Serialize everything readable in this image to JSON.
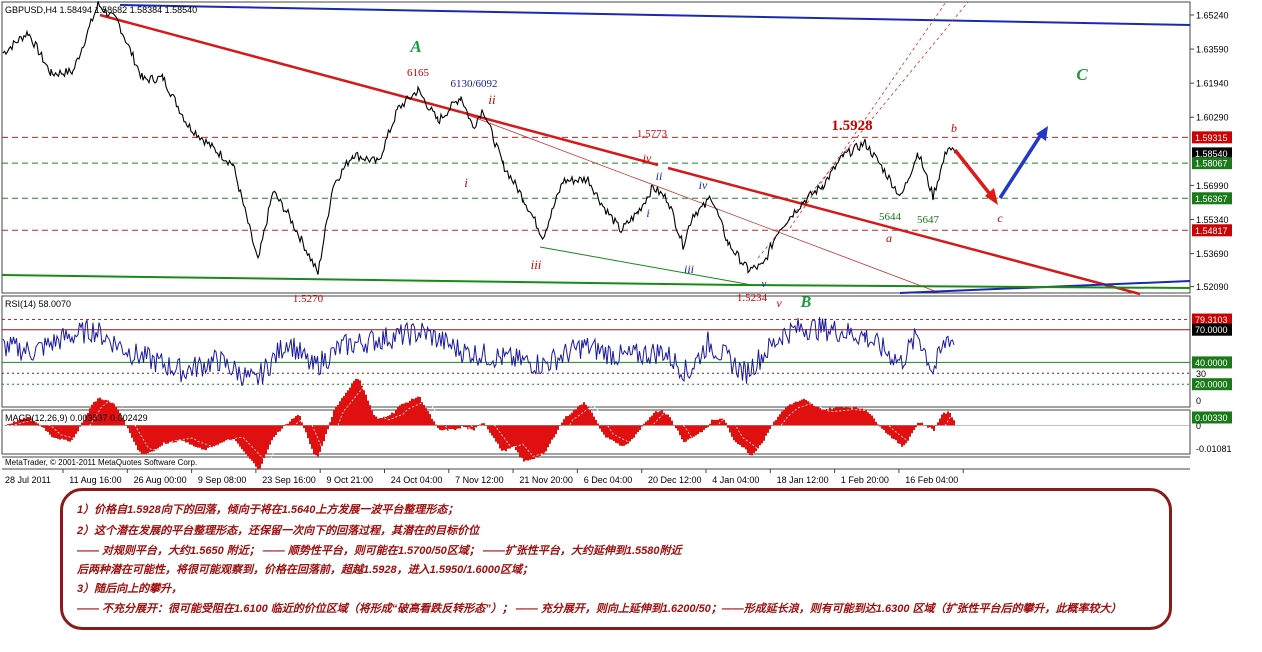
{
  "header": {
    "symbol": "GBPUSD,H4",
    "ohlc": "1.58494 1.58682 1.58384 1.58540"
  },
  "chart_data": [
    {
      "type": "line",
      "title": "GBPUSD,H4 1.58494 1.58682 1.58384 1.58540",
      "ylim": [
        1.5183,
        1.6582
      ],
      "price_ticks": [
        "1.65240",
        "1.63590",
        "1.61940",
        "1.60290",
        "1.58540",
        "1.56990",
        "1.55340",
        "1.53690",
        "1.52090"
      ],
      "time_labels": [
        "28 Jul 2011",
        "11 Aug 16:00",
        "26 Aug 00:00",
        "9 Sep 08:00",
        "23 Sep 16:00",
        "9 Oct 21:00",
        "24 Oct 04:00",
        "7 Nov 12:00",
        "21 Nov 20:00",
        "6 Dec 04:00",
        "20 Dec 12:00",
        "4 Jan 04:00",
        "18 Jan 12:00",
        "1 Feb 20:00",
        "16 Feb 04:00"
      ],
      "keypoints": [
        {
          "x": 0,
          "y": 1.634
        },
        {
          "x": 25,
          "y": 1.644
        },
        {
          "x": 48,
          "y": 1.624
        },
        {
          "x": 70,
          "y": 1.625
        },
        {
          "x": 95,
          "y": 1.6575
        },
        {
          "x": 115,
          "y": 1.649
        },
        {
          "x": 140,
          "y": 1.621
        },
        {
          "x": 160,
          "y": 1.622
        },
        {
          "x": 185,
          "y": 1.599
        },
        {
          "x": 210,
          "y": 1.588
        },
        {
          "x": 230,
          "y": 1.58
        },
        {
          "x": 255,
          "y": 1.533
        },
        {
          "x": 270,
          "y": 1.567
        },
        {
          "x": 285,
          "y": 1.556
        },
        {
          "x": 300,
          "y": 1.542
        },
        {
          "x": 315,
          "y": 1.5272
        },
        {
          "x": 330,
          "y": 1.57
        },
        {
          "x": 350,
          "y": 1.585
        },
        {
          "x": 375,
          "y": 1.581
        },
        {
          "x": 395,
          "y": 1.607
        },
        {
          "x": 415,
          "y": 1.616
        },
        {
          "x": 435,
          "y": 1.601
        },
        {
          "x": 458,
          "y": 1.613
        },
        {
          "x": 470,
          "y": 1.598
        },
        {
          "x": 480,
          "y": 1.607
        },
        {
          "x": 500,
          "y": 1.58
        },
        {
          "x": 520,
          "y": 1.564
        },
        {
          "x": 540,
          "y": 1.545
        },
        {
          "x": 560,
          "y": 1.572
        },
        {
          "x": 585,
          "y": 1.573
        },
        {
          "x": 600,
          "y": 1.56
        },
        {
          "x": 618,
          "y": 1.548
        },
        {
          "x": 635,
          "y": 1.557
        },
        {
          "x": 650,
          "y": 1.569
        },
        {
          "x": 665,
          "y": 1.563
        },
        {
          "x": 680,
          "y": 1.541
        },
        {
          "x": 690,
          "y": 1.556
        },
        {
          "x": 702,
          "y": 1.56
        },
        {
          "x": 708,
          "y": 1.565
        },
        {
          "x": 725,
          "y": 1.542
        },
        {
          "x": 745,
          "y": 1.529
        },
        {
          "x": 760,
          "y": 1.531
        },
        {
          "x": 775,
          "y": 1.548
        },
        {
          "x": 800,
          "y": 1.562
        },
        {
          "x": 820,
          "y": 1.57
        },
        {
          "x": 840,
          "y": 1.584
        },
        {
          "x": 862,
          "y": 1.5905
        },
        {
          "x": 880,
          "y": 1.578
        },
        {
          "x": 898,
          "y": 1.5642
        },
        {
          "x": 915,
          "y": 1.586
        },
        {
          "x": 930,
          "y": 1.5647
        },
        {
          "x": 945,
          "y": 1.589
        },
        {
          "x": 952,
          "y": 1.5854
        }
      ],
      "horizontal_levels": [
        {
          "value": "1.59315",
          "label_color": "#cc0000",
          "line_color": "#cc2222",
          "style": "dash"
        },
        {
          "value": "1.58540",
          "label_color": "#000000",
          "line_color": "#000000",
          "style": "none"
        },
        {
          "value": "1.58067",
          "label_color": "#1a7a1a",
          "line_color": "#1a8a1a",
          "style": "dash"
        },
        {
          "value": "1.56367",
          "label_color": "#1a7a1a",
          "line_color": "#1a8a1a",
          "style": "dash"
        },
        {
          "value": "1.54817",
          "label_color": "#cc0000",
          "line_color": "#cc2222",
          "style": "dash"
        }
      ],
      "wave_labels": [
        {
          "text": "A",
          "x": 416,
          "y": 52,
          "color": "#1a9a3a",
          "size": 17,
          "style": "italic"
        },
        {
          "text": "6165",
          "x": 418,
          "y": 76,
          "color": "#cc0000",
          "size": 11,
          "style": "normal"
        },
        {
          "text": "6130/6092",
          "x": 474,
          "y": 87,
          "color": "#1a1aa0",
          "size": 11,
          "style": "normal"
        },
        {
          "text": "ii",
          "x": 492,
          "y": 104,
          "color": "#cc0000",
          "size": 13,
          "style": "italic"
        },
        {
          "text": "1.5773",
          "x": 652,
          "y": 137,
          "color": "#cc0000",
          "size": 11,
          "style": "normal"
        },
        {
          "text": "iv",
          "x": 647,
          "y": 162,
          "color": "#cc0000",
          "size": 12,
          "style": "italic"
        },
        {
          "text": "ii",
          "x": 659,
          "y": 180,
          "color": "#1a1aa0",
          "size": 12,
          "style": "italic"
        },
        {
          "text": "iv",
          "x": 703,
          "y": 189,
          "color": "#1a1aa0",
          "size": 12,
          "style": "italic"
        },
        {
          "text": "i",
          "x": 466,
          "y": 187,
          "color": "#cc0000",
          "size": 13,
          "style": "italic"
        },
        {
          "text": "i",
          "x": 648,
          "y": 217,
          "color": "#1a1aa0",
          "size": 12,
          "style": "italic"
        },
        {
          "text": "iii",
          "x": 536,
          "y": 269,
          "color": "#cc0000",
          "size": 13,
          "style": "italic"
        },
        {
          "text": "iii",
          "x": 689,
          "y": 273,
          "color": "#1a1aa0",
          "size": 12,
          "style": "italic"
        },
        {
          "text": "v",
          "x": 764,
          "y": 287,
          "color": "#1a1aa0",
          "size": 11,
          "style": "italic"
        },
        {
          "text": "1.5234",
          "x": 752,
          "y": 301,
          "color": "#cc0000",
          "size": 11,
          "style": "normal"
        },
        {
          "text": "v",
          "x": 779,
          "y": 307,
          "color": "#cc0000",
          "size": 12,
          "style": "italic"
        },
        {
          "text": "B",
          "x": 806,
          "y": 307,
          "color": "#1a9a3a",
          "size": 16,
          "style": "italic"
        },
        {
          "text": "1.5270",
          "x": 308,
          "y": 302,
          "color": "#cc0000",
          "size": 11,
          "style": "normal"
        },
        {
          "text": "1.5928",
          "x": 852,
          "y": 130,
          "color": "#cc0000",
          "size": 15,
          "style": "normal"
        },
        {
          "text": "b",
          "x": 954,
          "y": 132,
          "color": "#cc0000",
          "size": 12,
          "style": "italic"
        },
        {
          "text": "C",
          "x": 1082,
          "y": 80,
          "color": "#1a9a3a",
          "size": 17,
          "style": "italic"
        },
        {
          "text": "5644",
          "x": 890,
          "y": 220,
          "color": "#1a7a1a",
          "size": 11,
          "style": "normal"
        },
        {
          "text": "5647",
          "x": 928,
          "y": 223,
          "color": "#1a7a1a",
          "size": 11,
          "style": "normal"
        },
        {
          "text": "a",
          "x": 889,
          "y": 242,
          "color": "#cc0000",
          "size": 12,
          "style": "italic"
        },
        {
          "text": "c",
          "x": 1000,
          "y": 222,
          "color": "#cc0000",
          "size": 12,
          "style": "italic"
        }
      ]
    },
    {
      "type": "line",
      "title": "RSI(14) 58.0070",
      "ylim": [
        0,
        100
      ],
      "ticks": [
        "79.3103",
        "70.0000",
        "40.0000",
        "30",
        "20.0000",
        "0"
      ],
      "keypoints": [
        {
          "x": 0,
          "y": 55
        },
        {
          "x": 30,
          "y": 50
        },
        {
          "x": 60,
          "y": 62
        },
        {
          "x": 90,
          "y": 70
        },
        {
          "x": 130,
          "y": 48
        },
        {
          "x": 180,
          "y": 32
        },
        {
          "x": 215,
          "y": 42
        },
        {
          "x": 252,
          "y": 22
        },
        {
          "x": 285,
          "y": 60
        },
        {
          "x": 310,
          "y": 35
        },
        {
          "x": 340,
          "y": 55
        },
        {
          "x": 380,
          "y": 62
        },
        {
          "x": 420,
          "y": 68
        },
        {
          "x": 460,
          "y": 50
        },
        {
          "x": 500,
          "y": 44
        },
        {
          "x": 540,
          "y": 38
        },
        {
          "x": 580,
          "y": 55
        },
        {
          "x": 620,
          "y": 45
        },
        {
          "x": 660,
          "y": 50
        },
        {
          "x": 685,
          "y": 30
        },
        {
          "x": 705,
          "y": 58
        },
        {
          "x": 742,
          "y": 30
        },
        {
          "x": 780,
          "y": 66
        },
        {
          "x": 800,
          "y": 72
        },
        {
          "x": 830,
          "y": 70
        },
        {
          "x": 862,
          "y": 64
        },
        {
          "x": 898,
          "y": 40
        },
        {
          "x": 915,
          "y": 66
        },
        {
          "x": 930,
          "y": 32
        },
        {
          "x": 945,
          "y": 64
        },
        {
          "x": 952,
          "y": 58
        }
      ]
    },
    {
      "type": "bar",
      "title": "MACD(12,26,9) 0.003537 0.002429",
      "ticks": [
        "0.00330",
        "0",
        "-0.01081"
      ],
      "ylim": [
        -0.0115,
        0.006
      ]
    }
  ],
  "footer": {
    "copyright": "MetaTrader, © 2001-2011 MetaQuotes Software Corp."
  },
  "annotation": {
    "lines": [
      "1）价格自1.5928向下的回落，倾向于将在1.5640上方发展一波平台整理形态；",
      "2）这个潜在发展的平台整理形态，还保留一次向下的回落过程，其潜在的目标价位",
      "—— 对规则平台，大约1.5650 附近； —— 顺势性平台，则可能在1.5700/50区域； ——扩张性平台，大约延伸到1.5580附近",
      "后两种潜在可能性，将很可能观察到，价格在回落前，超越1.5928，进入1.5950/1.6000区域；",
      "3）随后向上的攀升，",
      "—— 不充分展开：很可能受阻在1.6100 临近的价位区域（将形成“破高看跌反转形态”）； —— 充分展开，则向上延伸到1.6200/50；——形成延长浪，则有可能到达1.6300 区域（扩张性平台后的攀升，此概率较大）"
    ]
  }
}
